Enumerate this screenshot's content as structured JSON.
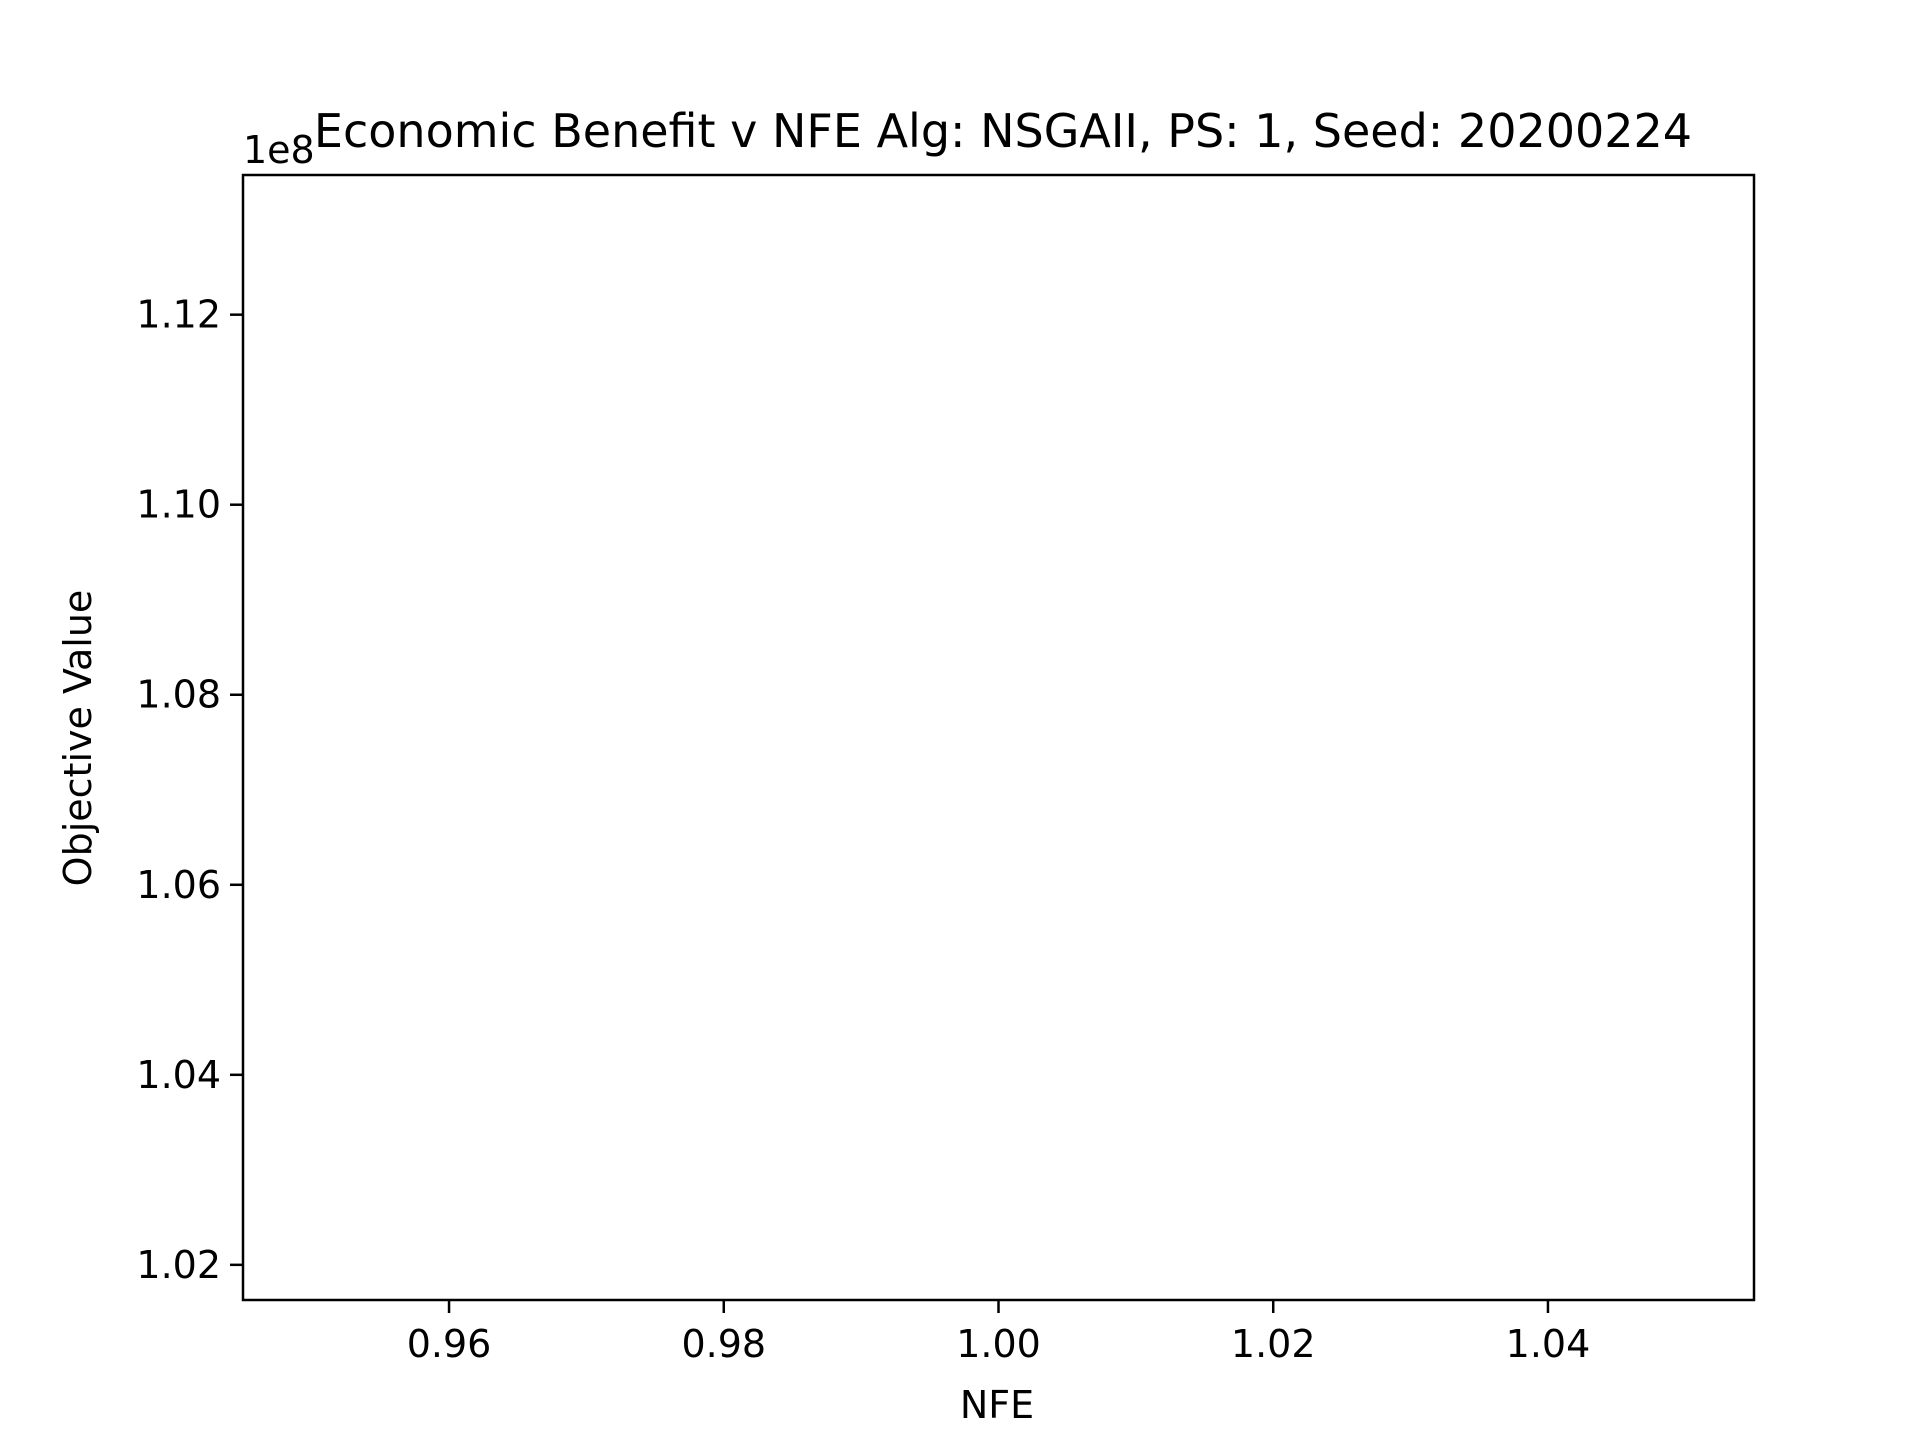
{
  "chart_data": {
    "type": "line",
    "title": "Economic Benefit v NFE Alg: NSGAII, PS: 1, Seed: 20200224",
    "xlabel": "NFE",
    "ylabel": "Objective Value",
    "y_offset_label": "1e8",
    "xlim": [
      0.945,
      1.055
    ],
    "ylim": [
      1.0163,
      1.1347
    ],
    "x_ticks": [
      0.96,
      0.98,
      1.0,
      1.02,
      1.04
    ],
    "x_tick_labels": [
      "0.96",
      "0.98",
      "1.00",
      "1.02",
      "1.04"
    ],
    "y_ticks": [
      1.02,
      1.04,
      1.06,
      1.08,
      1.1,
      1.12
    ],
    "y_tick_labels": [
      "1.02",
      "1.04",
      "1.06",
      "1.08",
      "1.10",
      "1.12"
    ],
    "series": [],
    "grid": false,
    "legend": false
  }
}
